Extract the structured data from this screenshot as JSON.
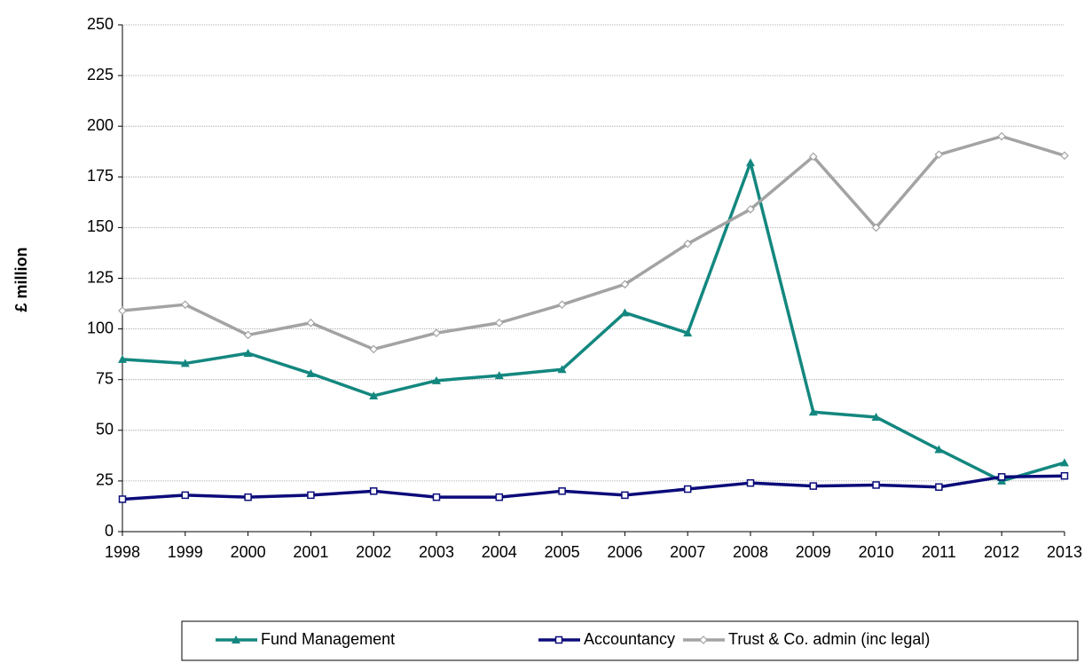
{
  "chart_data": {
    "type": "line",
    "y_label": "£ million",
    "categories": [
      "1998",
      "1999",
      "2000",
      "2001",
      "2002",
      "2003",
      "2004",
      "2005",
      "2006",
      "2007",
      "2008",
      "2009",
      "2010",
      "2011",
      "2012",
      "2013"
    ],
    "series": [
      {
        "name": "Fund Management",
        "color": "#13877f",
        "marker": "triangle",
        "values": [
          85,
          83,
          88,
          78,
          67,
          74.5,
          77,
          80,
          108,
          98,
          182,
          59,
          56.5,
          40.5,
          25,
          34
        ]
      },
      {
        "name": "Accountancy",
        "color": "#0b0b7a",
        "marker": "square",
        "values": [
          16,
          18,
          17,
          18,
          20,
          17,
          17,
          20,
          18,
          21,
          24,
          22.5,
          23,
          22,
          27,
          27.5
        ]
      },
      {
        "name": "Trust & Co. admin (inc legal)",
        "color": "#a3a3a3",
        "marker": "diamond",
        "values": [
          109,
          112,
          97,
          103,
          90,
          98,
          103,
          112,
          122,
          142,
          159,
          185,
          150,
          186,
          195,
          185.5
        ]
      }
    ],
    "ylim": [
      0,
      250
    ],
    "yticks": [
      0,
      25,
      50,
      75,
      100,
      125,
      150,
      175,
      200,
      225,
      250
    ],
    "grid": true,
    "legend": "bottom"
  }
}
